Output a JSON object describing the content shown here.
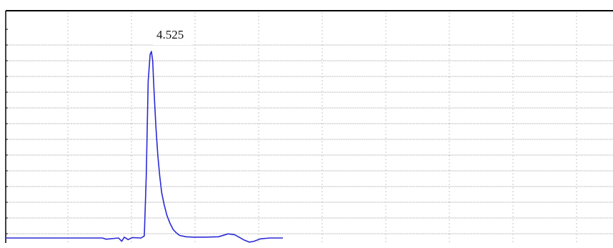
{
  "chart_data": {
    "type": "line",
    "title": "",
    "xlabel": "",
    "ylabel": "",
    "x_range": [
      0,
      9.4
    ],
    "y_range": [
      -0.15,
      4.7
    ],
    "grid": true,
    "peak_annotation": {
      "x": 2.25,
      "y": 4.525,
      "text": "4.525"
    },
    "series": [
      {
        "color": "#2a2ad6",
        "points": [
          [
            0.0,
            0.0
          ],
          [
            0.8,
            0.0
          ],
          [
            1.5,
            0.0
          ],
          [
            1.56,
            -0.03
          ],
          [
            1.75,
            0.0
          ],
          [
            1.8,
            -0.08
          ],
          [
            1.84,
            0.02
          ],
          [
            1.9,
            -0.04
          ],
          [
            1.96,
            0.01
          ],
          [
            2.1,
            0.0
          ],
          [
            2.15,
            0.05
          ],
          [
            2.18,
            1.5
          ],
          [
            2.21,
            3.8
          ],
          [
            2.24,
            4.45
          ],
          [
            2.26,
            4.525
          ],
          [
            2.28,
            4.3
          ],
          [
            2.3,
            3.6
          ],
          [
            2.33,
            2.7
          ],
          [
            2.36,
            2.0
          ],
          [
            2.39,
            1.5
          ],
          [
            2.42,
            1.1
          ],
          [
            2.46,
            0.8
          ],
          [
            2.5,
            0.55
          ],
          [
            2.55,
            0.35
          ],
          [
            2.6,
            0.2
          ],
          [
            2.65,
            0.12
          ],
          [
            2.7,
            0.06
          ],
          [
            2.8,
            0.03
          ],
          [
            2.9,
            0.02
          ],
          [
            3.1,
            0.02
          ],
          [
            3.3,
            0.03
          ],
          [
            3.45,
            0.1
          ],
          [
            3.55,
            0.08
          ],
          [
            3.62,
            0.02
          ],
          [
            3.7,
            -0.05
          ],
          [
            3.78,
            -0.1
          ],
          [
            3.85,
            -0.08
          ],
          [
            3.95,
            -0.02
          ],
          [
            4.1,
            0.0
          ],
          [
            4.3,
            0.0
          ]
        ]
      }
    ]
  }
}
